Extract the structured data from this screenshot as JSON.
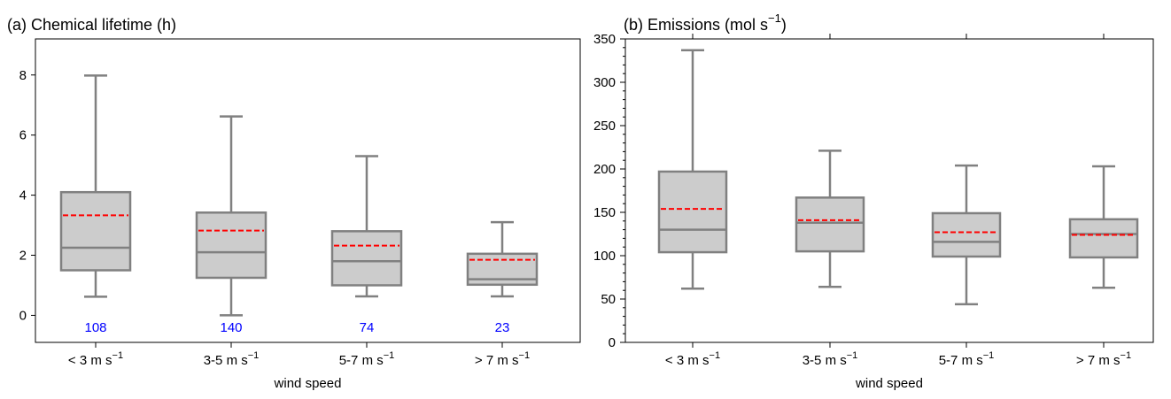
{
  "chart_data": [
    {
      "type": "box",
      "title_main": "(a) Chemical lifetime (h)",
      "xlabel": "wind speed",
      "ylim": [
        -0.9,
        9.2
      ],
      "yticks": [
        0,
        2,
        4,
        6,
        8
      ],
      "categories": [
        {
          "base": "< 3 m s",
          "sup": "−1"
        },
        {
          "base": "3-5 m s",
          "sup": "−1"
        },
        {
          "base": "5-7 m s",
          "sup": "−1"
        },
        {
          "base": "> 7 m s",
          "sup": "−1"
        }
      ],
      "boxes": [
        {
          "whisker_low": 0.62,
          "q1": 1.5,
          "median": 2.25,
          "q3": 4.1,
          "whisker_high": 7.98,
          "mean": 3.33
        },
        {
          "whisker_low": 0.0,
          "q1": 1.25,
          "median": 2.1,
          "q3": 3.42,
          "whisker_high": 6.62,
          "mean": 2.82
        },
        {
          "whisker_low": 0.63,
          "q1": 1.0,
          "median": 1.8,
          "q3": 2.8,
          "whisker_high": 5.3,
          "mean": 2.32
        },
        {
          "whisker_low": 0.63,
          "q1": 1.02,
          "median": 1.2,
          "q3": 2.05,
          "whisker_high": 3.1,
          "mean": 1.85
        }
      ],
      "counts": [
        "108",
        "140",
        "74",
        "23"
      ],
      "count_color": "#0000ff",
      "box_fill": "#cccccc",
      "box_edge": "#808080",
      "mean_color": "#ff0000"
    },
    {
      "type": "box",
      "title_main": "(b) Emissions (mol s",
      "title_sup": "−1",
      "title_close": ")",
      "xlabel": "wind speed",
      "ylim": [
        0,
        350
      ],
      "yticks": [
        0,
        50,
        100,
        150,
        200,
        250,
        300,
        350
      ],
      "categories": [
        {
          "base": "< 3 m s",
          "sup": "−1"
        },
        {
          "base": "3-5 m s",
          "sup": "−1"
        },
        {
          "base": "5-7 m s",
          "sup": "−1"
        },
        {
          "base": "> 7 m s",
          "sup": "−1"
        }
      ],
      "boxes": [
        {
          "whisker_low": 62,
          "q1": 104,
          "median": 130,
          "q3": 197,
          "whisker_high": 337,
          "mean": 154
        },
        {
          "whisker_low": 64,
          "q1": 105,
          "median": 138,
          "q3": 167,
          "whisker_high": 221,
          "mean": 141
        },
        {
          "whisker_low": 44,
          "q1": 99,
          "median": 116,
          "q3": 149,
          "whisker_high": 204,
          "mean": 127
        },
        {
          "whisker_low": 63,
          "q1": 98,
          "median": 125,
          "q3": 142,
          "whisker_high": 203,
          "mean": 124
        }
      ],
      "box_fill": "#cccccc",
      "box_edge": "#808080",
      "mean_color": "#ff0000"
    }
  ]
}
